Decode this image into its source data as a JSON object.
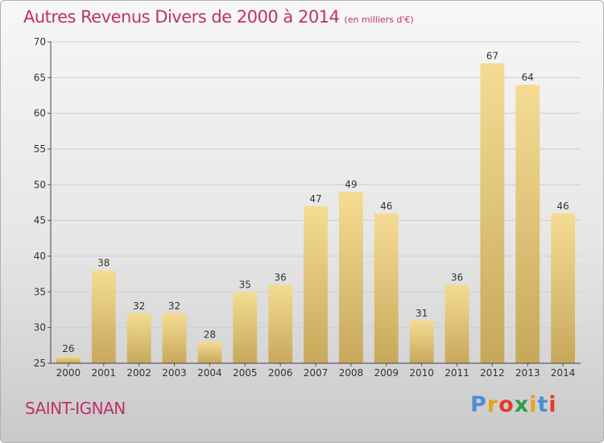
{
  "title": "Autres Revenus Divers de 2000 à 2014",
  "subtitle": "(en milliers d'€)",
  "place": "SAINT-IGNAN",
  "logo_text": "Proxiti",
  "colors": {
    "title": "#c0306a",
    "bar_light": "#f5dc93",
    "bar_dark": "#c7a85b",
    "grid": "#cccccc"
  },
  "chart_data": {
    "type": "bar",
    "title": "Autres Revenus Divers de 2000 à 2014",
    "subtitle": "(en milliers d'€)",
    "categories": [
      "2000",
      "2001",
      "2002",
      "2003",
      "2004",
      "2005",
      "2006",
      "2007",
      "2008",
      "2009",
      "2010",
      "2011",
      "2012",
      "2013",
      "2014"
    ],
    "values": [
      26,
      38,
      32,
      32,
      28,
      35,
      36,
      47,
      49,
      46,
      31,
      36,
      67,
      64,
      46
    ],
    "ylim": [
      25,
      70
    ],
    "yticks": [
      25,
      30,
      35,
      40,
      45,
      50,
      55,
      60,
      65,
      70
    ],
    "grid": true,
    "xlabel": "",
    "ylabel": ""
  }
}
